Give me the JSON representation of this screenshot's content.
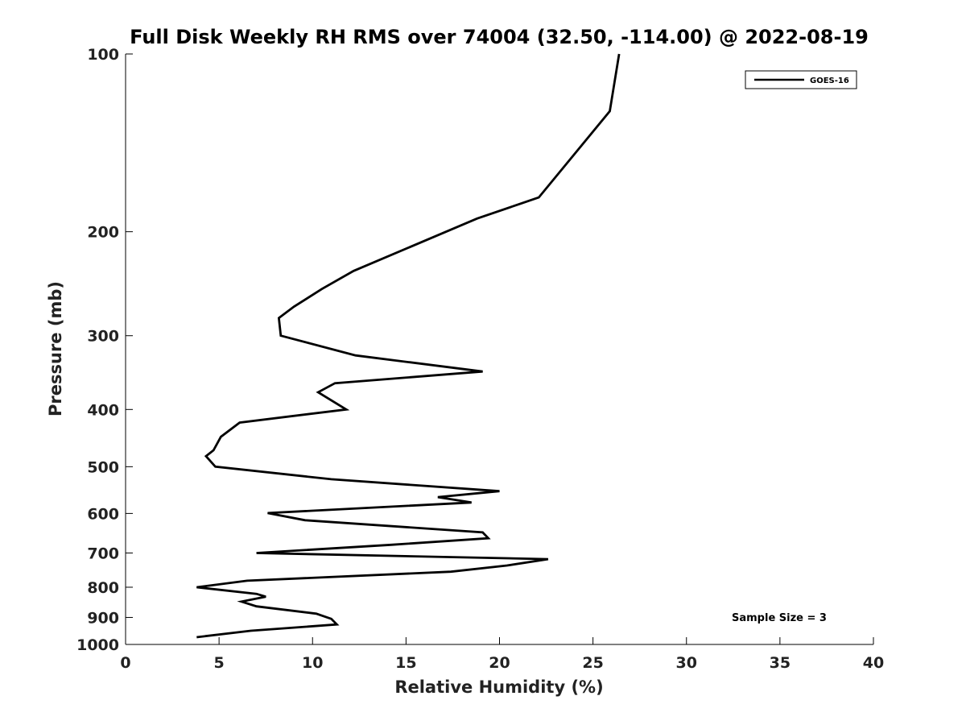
{
  "chart_data": {
    "type": "line",
    "title": "Full Disk Weekly RH RMS over 74004 (32.50, -114.00) @ 2022-08-19",
    "xlabel": "Relative Humidity (%)",
    "ylabel": "Pressure (mb)",
    "xlim": [
      0,
      40
    ],
    "ylim": [
      100,
      1000
    ],
    "y_scale": "log",
    "y_reversed": true,
    "xticks": [
      0,
      5,
      10,
      15,
      20,
      25,
      30,
      35,
      40
    ],
    "yticks": [
      100,
      200,
      300,
      400,
      500,
      600,
      700,
      800,
      900,
      1000
    ],
    "grid": false,
    "legend_position": "top-right",
    "annotation": "Sample Size = 3",
    "series": [
      {
        "name": "GOES-16",
        "color": "#000000",
        "points": [
          [
            26.4,
            100
          ],
          [
            25.9,
            125
          ],
          [
            22.1,
            175
          ],
          [
            18.8,
            190
          ],
          [
            12.2,
            233
          ],
          [
            10.5,
            250
          ],
          [
            9.0,
            268
          ],
          [
            8.2,
            280
          ],
          [
            8.3,
            300
          ],
          [
            12.3,
            324
          ],
          [
            19.1,
            345
          ],
          [
            11.2,
            361
          ],
          [
            10.3,
            374
          ],
          [
            11.8,
            400
          ],
          [
            6.1,
            421
          ],
          [
            5.1,
            445
          ],
          [
            4.7,
            469
          ],
          [
            4.3,
            480
          ],
          [
            4.8,
            500
          ],
          [
            11.0,
            525
          ],
          [
            20.0,
            550
          ],
          [
            16.7,
            563
          ],
          [
            18.5,
            575
          ],
          [
            7.6,
            599
          ],
          [
            9.6,
            616
          ],
          [
            19.1,
            646
          ],
          [
            19.4,
            661
          ],
          [
            14.2,
            678
          ],
          [
            7.0,
            700
          ],
          [
            22.6,
            717
          ],
          [
            20.4,
            735
          ],
          [
            17.4,
            753
          ],
          [
            6.5,
            780
          ],
          [
            3.8,
            800
          ],
          [
            7.0,
            821
          ],
          [
            7.5,
            830
          ],
          [
            6.2,
            846
          ],
          [
            7.0,
            862
          ],
          [
            10.2,
            887
          ],
          [
            11.0,
            905
          ],
          [
            11.3,
            925
          ],
          [
            6.7,
            948
          ],
          [
            3.8,
            972
          ]
        ]
      }
    ]
  }
}
